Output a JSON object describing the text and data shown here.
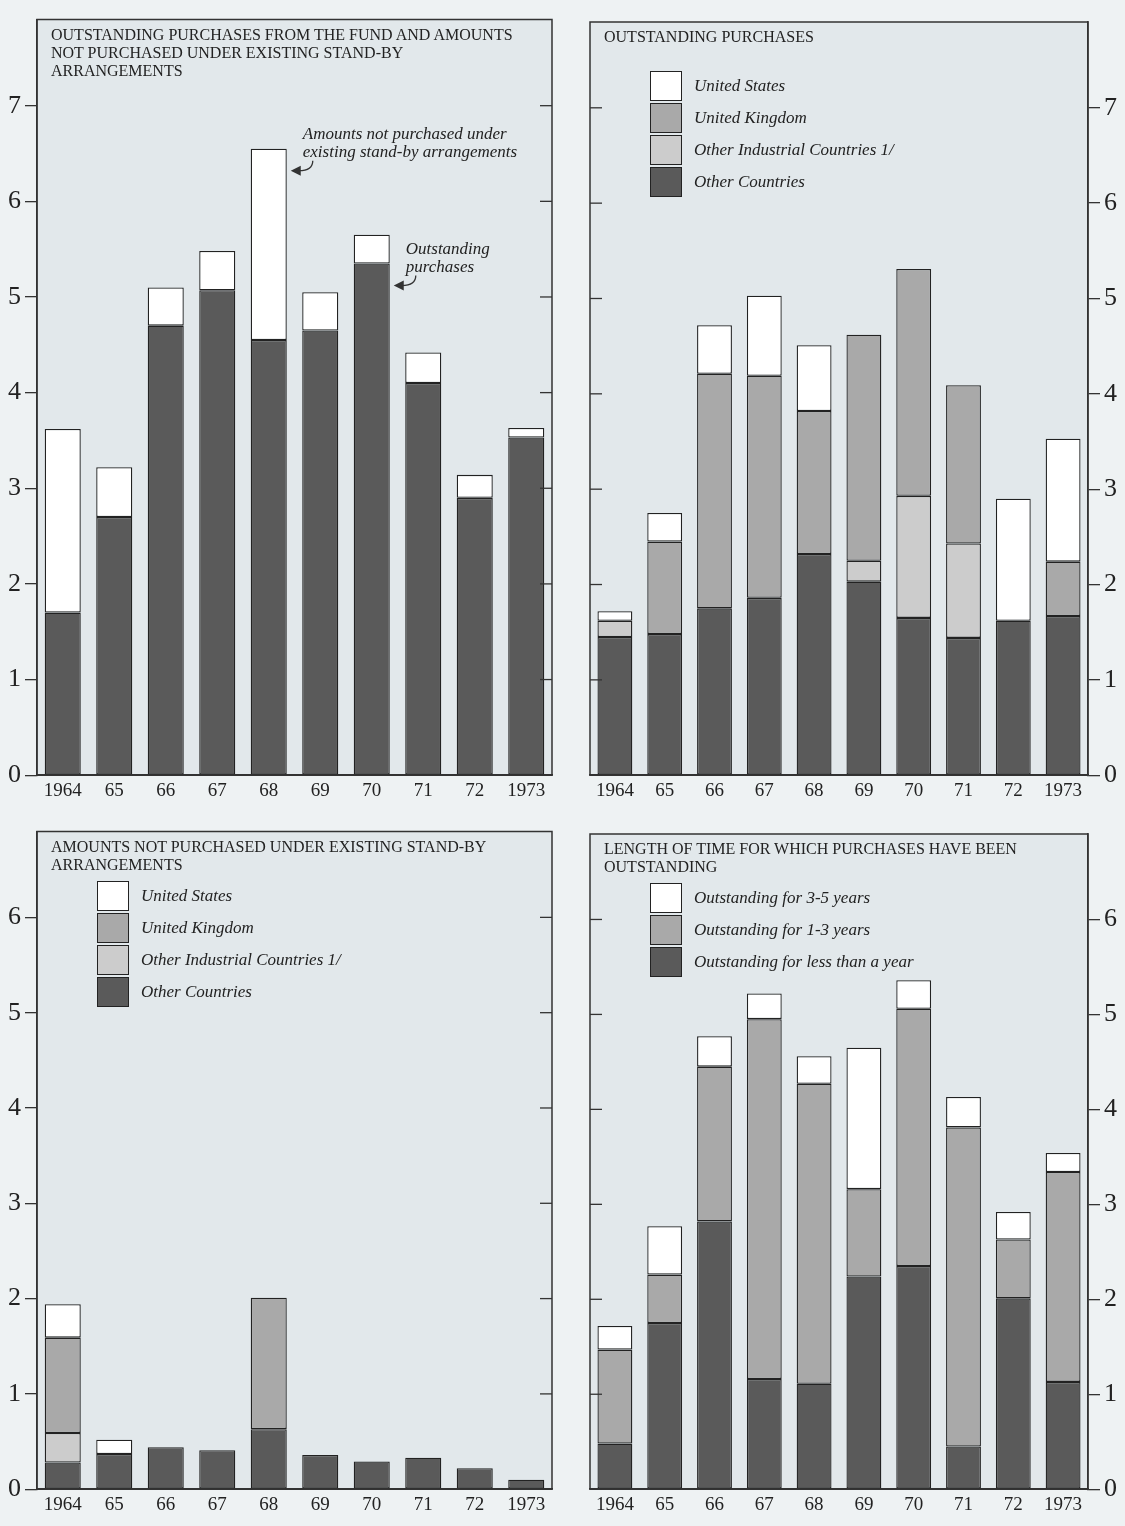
{
  "chart_data": [
    {
      "type": "bar",
      "title": "OUTSTANDING PURCHASES FROM THE FUND AND AMOUNTS NOT PURCHASED UNDER EXISTING STAND-BY ARRANGEMENTS",
      "categories": [
        "1964",
        "65",
        "66",
        "67",
        "68",
        "69",
        "70",
        "71",
        "72",
        "1973"
      ],
      "stacked": true,
      "ylim": [
        0,
        7.9
      ],
      "yticks": [
        0,
        1,
        2,
        3,
        4,
        5,
        6,
        7
      ],
      "legend": false,
      "series": [
        {
          "name": "Outstanding purchases",
          "color": "#5a5a5a",
          "values": [
            1.7,
            2.7,
            4.7,
            5.07,
            4.55,
            4.65,
            5.35,
            4.1,
            2.9,
            3.53
          ]
        },
        {
          "name": "Amounts not purchased under existing stand-by arrangements",
          "color": "#ffffff",
          "values": [
            1.92,
            0.52,
            0.4,
            0.41,
            2.0,
            0.4,
            0.3,
            0.32,
            0.24,
            0.1
          ]
        }
      ]
    },
    {
      "type": "bar",
      "title": "OUTSTANDING PURCHASES",
      "categories": [
        "1964",
        "65",
        "66",
        "67",
        "68",
        "69",
        "70",
        "71",
        "72",
        "1973"
      ],
      "stacked": true,
      "y2lim": [
        0,
        7.9
      ],
      "y2ticks": [
        0,
        1,
        2,
        3,
        4,
        5,
        6,
        7
      ],
      "legend": "top left",
      "series": [
        {
          "name": "Other Countries",
          "color": "#5a5a5a",
          "axis": "y2",
          "values": [
            1.45,
            1.48,
            1.75,
            1.86,
            2.32,
            2.03,
            1.65,
            1.44,
            1.62,
            1.67
          ]
        },
        {
          "name": "Other Industrial Countries 1/",
          "color": "#cccccc",
          "axis": "y2",
          "values": [
            0.17,
            0,
            0,
            0,
            0,
            0.22,
            1.28,
            0.99,
            0,
            0
          ]
        },
        {
          "name": "United Kingdom",
          "color": "#a9a9a9",
          "axis": "y2",
          "values": [
            0,
            0.97,
            2.46,
            2.33,
            1.5,
            2.37,
            2.38,
            1.66,
            0,
            0.57
          ]
        },
        {
          "name": "United States",
          "color": "#ffffff",
          "axis": "y2",
          "values": [
            0.1,
            0.3,
            0.51,
            0.84,
            0.69,
            0,
            0,
            0,
            1.28,
            1.29
          ]
        }
      ]
    },
    {
      "type": "bar",
      "title": "AMOUNTS NOT PURCHASED UNDER EXISTING STAND-BY ARRANGEMENTS",
      "categories": [
        "1964",
        "65",
        "66",
        "67",
        "68",
        "69",
        "70",
        "71",
        "72",
        "1973"
      ],
      "stacked": true,
      "ylim": [
        0,
        6.9
      ],
      "yticks": [
        0,
        1,
        2,
        3,
        4,
        5,
        6
      ],
      "legend": "top left",
      "series": [
        {
          "name": "Other Countries",
          "color": "#5a5a5a",
          "values": [
            0.28,
            0.37,
            0.44,
            0.41,
            0.63,
            0.36,
            0.29,
            0.33,
            0.22,
            0.1
          ]
        },
        {
          "name": "Other Industrial Countries 1/",
          "color": "#cccccc",
          "values": [
            0.31,
            0,
            0,
            0,
            0,
            0,
            0,
            0,
            0,
            0
          ]
        },
        {
          "name": "United Kingdom",
          "color": "#a9a9a9",
          "values": [
            1.0,
            0,
            0,
            0,
            1.38,
            0,
            0,
            0,
            0,
            0
          ]
        },
        {
          "name": "United States",
          "color": "#ffffff",
          "values": [
            0.35,
            0.15,
            0,
            0,
            0,
            0,
            0,
            0,
            0,
            0
          ]
        }
      ]
    },
    {
      "type": "bar",
      "title": "LENGTH OF TIME FOR WHICH PURCHASES HAVE BEEN OUTSTANDING",
      "categories": [
        "1964",
        "65",
        "66",
        "67",
        "68",
        "69",
        "70",
        "71",
        "72",
        "1973"
      ],
      "stacked": true,
      "y2lim": [
        0,
        6.9
      ],
      "y2ticks": [
        0,
        1,
        2,
        3,
        4,
        5,
        6
      ],
      "legend": "top left",
      "series": [
        {
          "name": "Outstanding for less than a year",
          "color": "#5a5a5a",
          "axis": "y2",
          "values": [
            0.48,
            1.75,
            2.82,
            1.16,
            1.11,
            2.24,
            2.35,
            0.45,
            2.01,
            1.13
          ]
        },
        {
          "name": "Outstanding for 1-3 years",
          "color": "#a9a9a9",
          "axis": "y2",
          "values": [
            0.99,
            0.51,
            1.63,
            3.79,
            3.16,
            0.92,
            2.71,
            3.36,
            0.62,
            2.21
          ]
        },
        {
          "name": "Outstanding for 3-5 years",
          "color": "#ffffff",
          "axis": "y2",
          "values": [
            0.25,
            0.51,
            0.32,
            0.27,
            0.29,
            1.49,
            0.3,
            0.32,
            0.29,
            0.2
          ]
        }
      ]
    }
  ]
}
